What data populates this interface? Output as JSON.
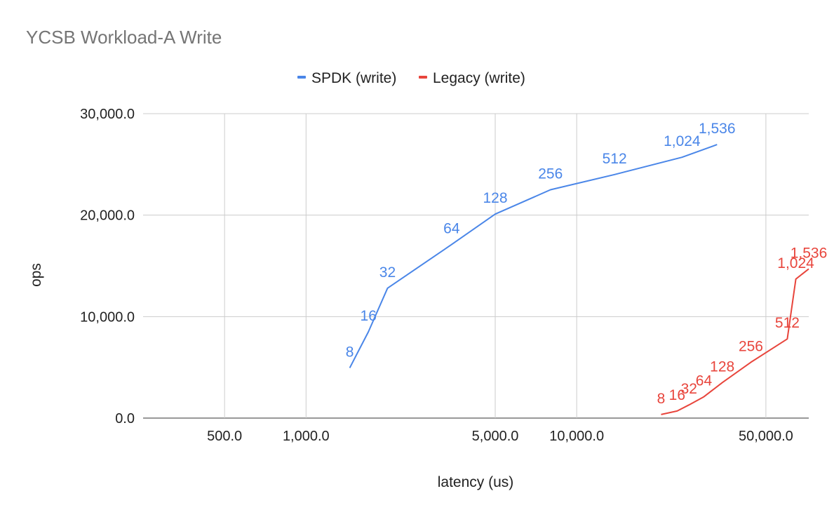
{
  "chart_data": {
    "type": "line",
    "title": "YCSB Workload-A Write",
    "xlabel": "latency (us)",
    "ylabel": "ops",
    "x_scale": "log",
    "xlim": [
      250,
      72000
    ],
    "ylim": [
      0,
      30000
    ],
    "x_ticks": [
      500,
      1000,
      5000,
      10000,
      50000
    ],
    "x_tick_labels": [
      "500.0",
      "1,000.0",
      "5,000.0",
      "10,000.0",
      "50,000.0"
    ],
    "y_ticks": [
      0,
      10000,
      20000,
      30000
    ],
    "y_tick_labels": [
      "0.0",
      "10,000.0",
      "20,000.0",
      "30,000.0"
    ],
    "grid": true,
    "legend_position": "top",
    "series": [
      {
        "name": "SPDK (write)",
        "color": "#4a86e8",
        "points": [
          {
            "x": 1450,
            "y": 4950,
            "label": "8"
          },
          {
            "x": 1700,
            "y": 8500,
            "label": "16"
          },
          {
            "x": 2000,
            "y": 12800,
            "label": "32"
          },
          {
            "x": 3450,
            "y": 17100,
            "label": "64"
          },
          {
            "x": 5000,
            "y": 20100,
            "label": "128"
          },
          {
            "x": 8000,
            "y": 22500,
            "label": "256"
          },
          {
            "x": 13800,
            "y": 24000,
            "label": "512"
          },
          {
            "x": 24500,
            "y": 25700,
            "label": "1,024"
          },
          {
            "x": 33000,
            "y": 26950,
            "label": "1,536"
          }
        ]
      },
      {
        "name": "Legacy (write)",
        "color": "#e8453c",
        "points": [
          {
            "x": 20500,
            "y": 350,
            "label": "8"
          },
          {
            "x": 23500,
            "y": 700,
            "label": "16"
          },
          {
            "x": 26000,
            "y": 1300,
            "label": "32"
          },
          {
            "x": 29500,
            "y": 2100,
            "label": "64"
          },
          {
            "x": 34500,
            "y": 3500,
            "label": "128"
          },
          {
            "x": 44000,
            "y": 5500,
            "label": "256"
          },
          {
            "x": 60000,
            "y": 7800,
            "label": "512"
          },
          {
            "x": 64500,
            "y": 13700,
            "label": "1,024"
          },
          {
            "x": 72000,
            "y": 14700,
            "label": "1,536"
          }
        ]
      }
    ]
  }
}
